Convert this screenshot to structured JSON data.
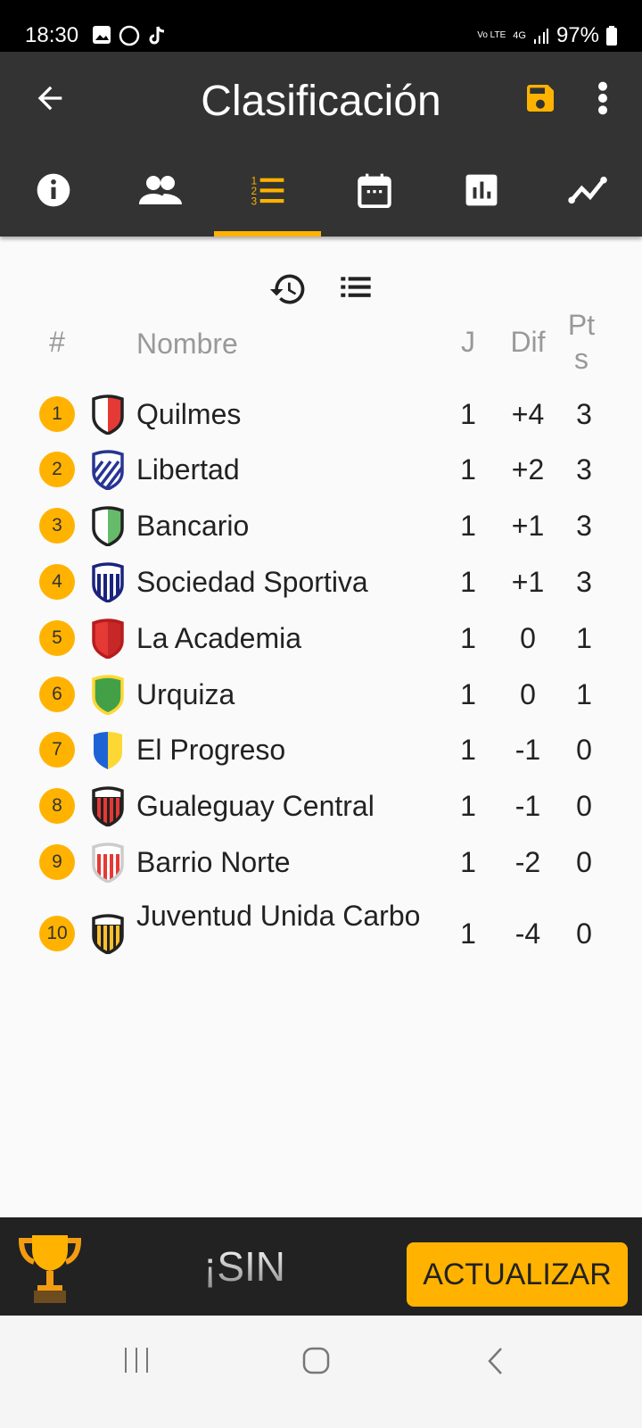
{
  "status_bar": {
    "time": "18:30",
    "battery": "97%",
    "network": "4G",
    "volte": "Vo LTE"
  },
  "header": {
    "title": "Clasificación",
    "back_icon": "arrow-left-icon",
    "save_icon": "floppy-save-icon",
    "menu_icon": "more-vert-icon"
  },
  "tabs": [
    {
      "icon": "info-icon"
    },
    {
      "icon": "people-icon"
    },
    {
      "icon": "ranking-list-icon",
      "active": true
    },
    {
      "icon": "calendar-icon"
    },
    {
      "icon": "bar-chart-icon"
    },
    {
      "icon": "line-chart-icon"
    }
  ],
  "accent": "#ffb300",
  "table": {
    "headers": {
      "rank": "#",
      "name": "Nombre",
      "j": "J",
      "dif": "Dif",
      "pts": "Pt s"
    },
    "rows": [
      {
        "rank": "1",
        "name": "Quilmes",
        "j": "1",
        "dif": "+4",
        "pts": "3",
        "crest": {
          "type": "split",
          "c1": "#ffffff",
          "c2": "#e53935",
          "border": "#222"
        }
      },
      {
        "rank": "2",
        "name": "Libertad",
        "j": "1",
        "dif": "+2",
        "pts": "3",
        "crest": {
          "type": "diag",
          "c1": "#ffffff",
          "c2": "#283593",
          "border": "#283593"
        }
      },
      {
        "rank": "3",
        "name": "Bancario",
        "j": "1",
        "dif": "+1",
        "pts": "3",
        "crest": {
          "type": "split",
          "c1": "#ffffff",
          "c2": "#66bb6a",
          "border": "#222"
        }
      },
      {
        "rank": "4",
        "name": "Sociedad Sportiva",
        "j": "1",
        "dif": "+1",
        "pts": "3",
        "crest": {
          "type": "stripes",
          "c1": "#ffffff",
          "c2": "#1a237e",
          "border": "#1a237e"
        }
      },
      {
        "rank": "5",
        "name": "La Academia",
        "j": "1",
        "dif": "0",
        "pts": "1",
        "crest": {
          "type": "split",
          "c1": "#e53935",
          "c2": "#c62828",
          "border": "#b71c1c"
        }
      },
      {
        "rank": "6",
        "name": "Urquiza",
        "j": "1",
        "dif": "0",
        "pts": "1",
        "crest": {
          "type": "split",
          "c1": "#43a047",
          "c2": "#43a047",
          "border": "#fdd835"
        }
      },
      {
        "rank": "7",
        "name": "El Progreso",
        "j": "1",
        "dif": "-1",
        "pts": "0",
        "crest": {
          "type": "split",
          "c1": "#1e63d6",
          "c2": "#fdd835",
          "border": "none"
        }
      },
      {
        "rank": "8",
        "name": "Gualeguay Central",
        "j": "1",
        "dif": "-1",
        "pts": "0",
        "crest": {
          "type": "stripes",
          "c1": "#222222",
          "c2": "#e53935",
          "border": "#222"
        }
      },
      {
        "rank": "9",
        "name": "Barrio Norte",
        "j": "1",
        "dif": "-2",
        "pts": "0",
        "crest": {
          "type": "stripes",
          "c1": "#ffffff",
          "c2": "#e53935",
          "border": "#ccc"
        }
      },
      {
        "rank": "10",
        "name": "Juventud Unida Carbo",
        "j": "1",
        "dif": "-4",
        "pts": "0",
        "crest": {
          "type": "stripes",
          "c1": "#222222",
          "c2": "#fbc02d",
          "border": "#222"
        }
      }
    ]
  },
  "bottom_bar": {
    "banner": "¡SIN",
    "update_button": "ACTUALIZAR",
    "trophy_icon": "trophy-icon"
  },
  "nav_bar": {
    "recents": "recents-icon",
    "home": "home-icon",
    "back": "back-icon"
  }
}
